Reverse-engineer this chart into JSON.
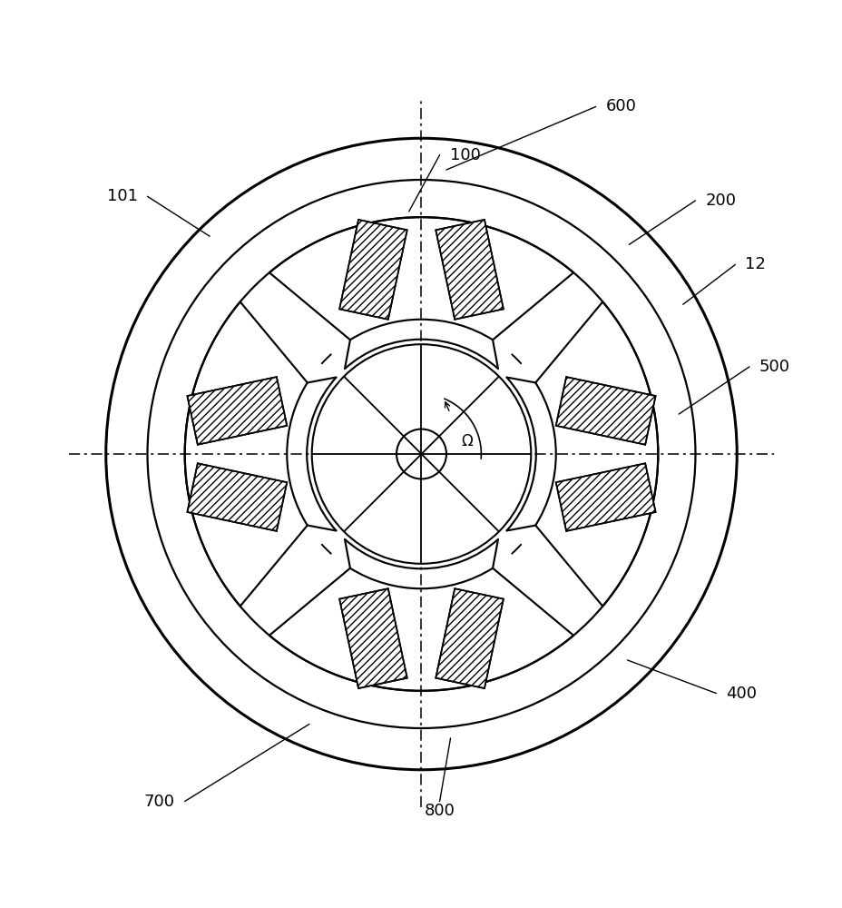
{
  "bg_color": "#ffffff",
  "line_color": "#000000",
  "r_frame_outer": 3.8,
  "r_frame_inner": 3.3,
  "r_stator_outer": 2.85,
  "r_pole_inner": 1.62,
  "r_airgap": 1.38,
  "r_rotor_outer": 1.32,
  "r_shaft": 0.3,
  "pole_half_ang_outer": 40,
  "pole_half_ang_inner": 30,
  "annotations": [
    [
      "100",
      [
        -0.15,
        2.92
      ],
      [
        0.22,
        3.6
      ]
    ],
    [
      "600",
      [
        0.3,
        3.42
      ],
      [
        2.1,
        4.18
      ]
    ],
    [
      "101",
      [
        -2.55,
        2.62
      ],
      [
        -3.3,
        3.1
      ]
    ],
    [
      "200",
      [
        2.5,
        2.52
      ],
      [
        3.3,
        3.05
      ]
    ],
    [
      "12",
      [
        3.15,
        1.8
      ],
      [
        3.78,
        2.28
      ]
    ],
    [
      "500",
      [
        3.1,
        0.48
      ],
      [
        3.95,
        1.05
      ]
    ],
    [
      "400",
      [
        2.48,
        -2.48
      ],
      [
        3.55,
        -2.88
      ]
    ],
    [
      "800",
      [
        0.35,
        -3.42
      ],
      [
        0.22,
        -4.18
      ]
    ],
    [
      "700",
      [
        -1.35,
        -3.25
      ],
      [
        -2.85,
        -4.18
      ]
    ]
  ]
}
